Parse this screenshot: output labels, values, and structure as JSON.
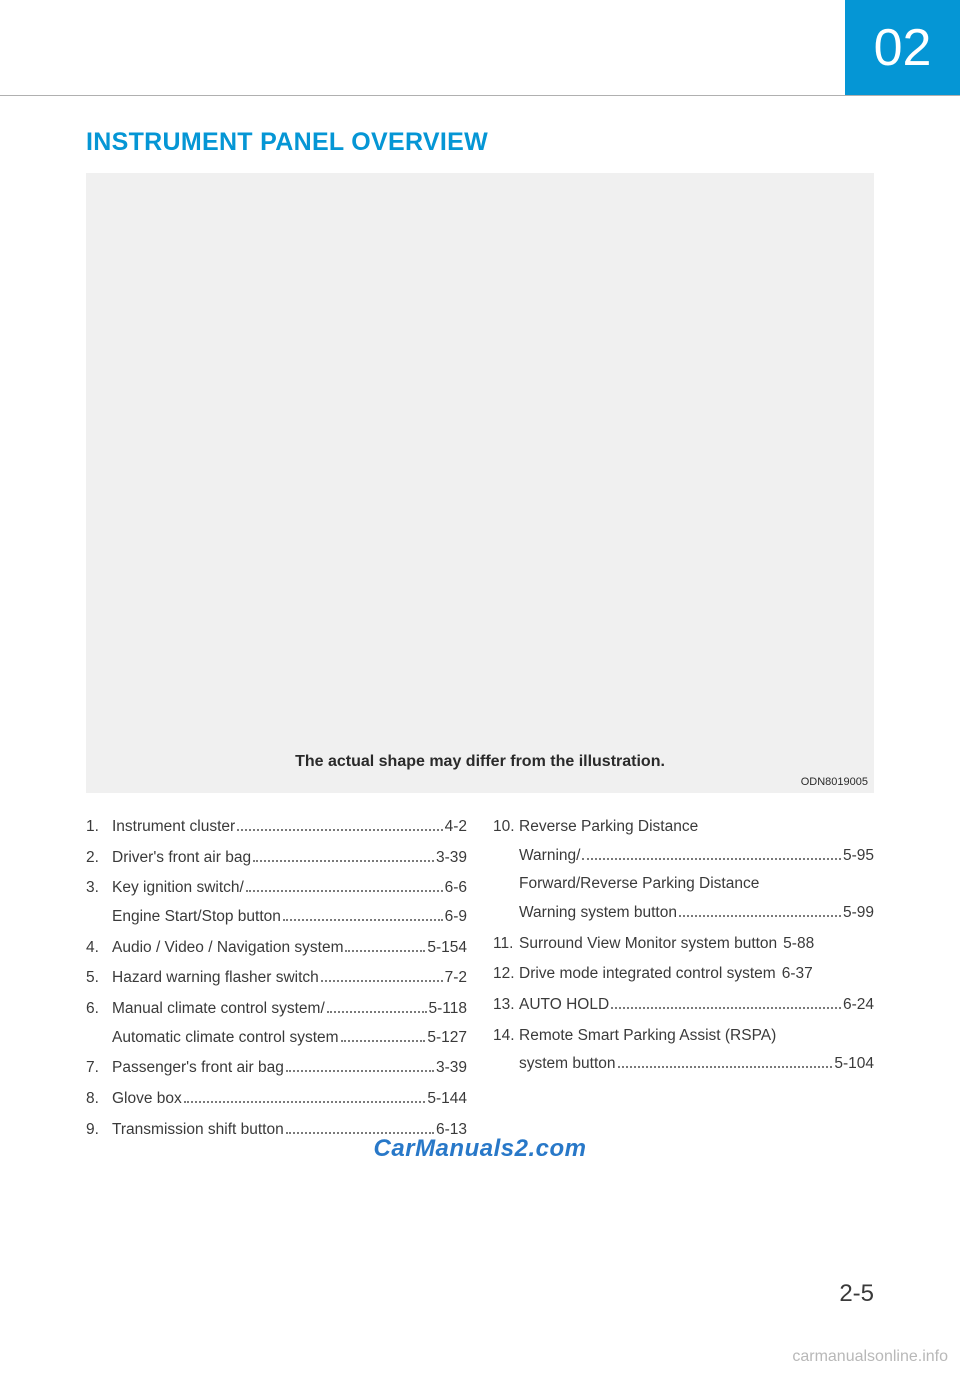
{
  "chapter": "02",
  "title": "INSTRUMENT PANEL OVERVIEW",
  "illustration": {
    "caption": "The actual shape may differ from the illustration.",
    "code": "ODN8019005"
  },
  "left_items": [
    {
      "n": "1.",
      "lines": [
        {
          "label": "Instrument cluster",
          "page": "4-2"
        }
      ]
    },
    {
      "n": "2.",
      "lines": [
        {
          "label": "Driver's front air bag",
          "page": "3-39"
        }
      ]
    },
    {
      "n": "3.",
      "lines": [
        {
          "label": "Key ignition switch/",
          "page": "6-6"
        },
        {
          "label": "Engine Start/Stop button",
          "page": "6-9"
        }
      ]
    },
    {
      "n": "4.",
      "lines": [
        {
          "label": "Audio / Video / Navigation system",
          "page": "5-154"
        }
      ]
    },
    {
      "n": "5.",
      "lines": [
        {
          "label": "Hazard warning flasher switch",
          "page": "7-2"
        }
      ]
    },
    {
      "n": "6.",
      "lines": [
        {
          "label": "Manual climate control system/",
          "page": "5-118"
        },
        {
          "label": "Automatic climate control system",
          "page": "5-127"
        }
      ]
    },
    {
      "n": "7.",
      "lines": [
        {
          "label": "Passenger's front air bag",
          "page": "3-39"
        }
      ]
    },
    {
      "n": "8.",
      "lines": [
        {
          "label": "Glove box",
          "page": "5-144"
        }
      ]
    },
    {
      "n": "9.",
      "lines": [
        {
          "label": "Transmission shift button",
          "page": "6-13"
        }
      ]
    }
  ],
  "right_items": [
    {
      "n": "10.",
      "lines": [
        {
          "label": "Reverse Parking Distance",
          "page": ""
        },
        {
          "label": "Warning/",
          "page": "5-95"
        },
        {
          "label": "Forward/Reverse Parking Distance",
          "page": ""
        },
        {
          "label": "Warning system button",
          "page": "5-99"
        }
      ]
    },
    {
      "n": "11.",
      "lines": [
        {
          "label": "Surround View Monitor system button",
          "page": "5-88",
          "nodots": true
        }
      ]
    },
    {
      "n": "12.",
      "lines": [
        {
          "label": "Drive mode integrated control system",
          "page": "6-37",
          "nodots": true
        }
      ]
    },
    {
      "n": "13.",
      "lines": [
        {
          "label": "AUTO HOLD",
          "page": "6-24"
        }
      ]
    },
    {
      "n": "14.",
      "lines": [
        {
          "label": "Remote Smart Parking Assist (RSPA)",
          "page": ""
        },
        {
          "label": "system button",
          "page": "5-104"
        }
      ]
    }
  ],
  "watermark": "CarManuals2.com",
  "page_number": "2-5",
  "footer": "carmanualsonline.info"
}
